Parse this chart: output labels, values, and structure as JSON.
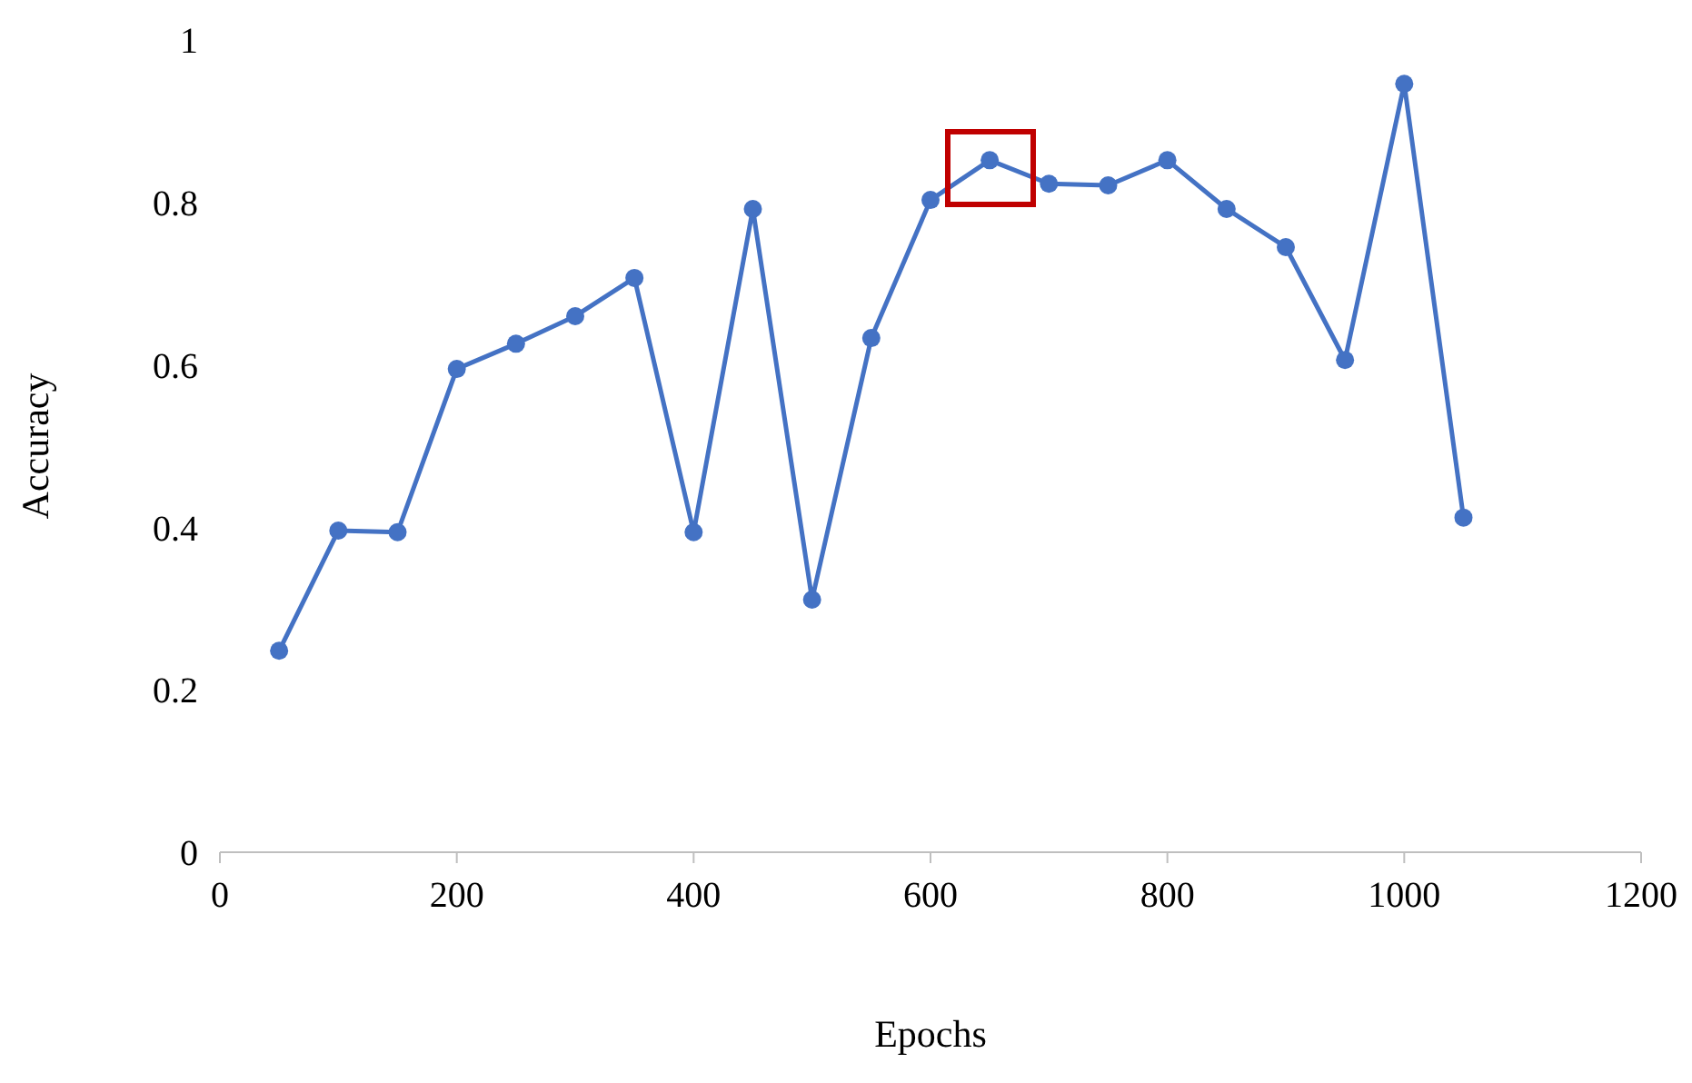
{
  "chart_data": {
    "type": "line",
    "xlabel": "Epochs",
    "ylabel": "Accuracy",
    "x": [
      50,
      100,
      150,
      200,
      250,
      300,
      350,
      400,
      450,
      500,
      550,
      600,
      650,
      700,
      750,
      800,
      850,
      900,
      950,
      1000,
      1050
    ],
    "series": [
      {
        "color": "#4472c4",
        "values": [
          0.248,
          0.396,
          0.394,
          0.595,
          0.626,
          0.66,
          0.707,
          0.394,
          0.792,
          0.311,
          0.633,
          0.803,
          0.852,
          0.823,
          0.821,
          0.852,
          0.792,
          0.745,
          0.606,
          0.946,
          0.412
        ]
      }
    ],
    "xlim": [
      0,
      1200
    ],
    "xticks": [
      0,
      200,
      400,
      600,
      800,
      1000,
      1200
    ],
    "ylim": [
      0,
      1
    ],
    "yticks": [
      0,
      0.2,
      0.4,
      0.6,
      0.8,
      1
    ],
    "grid": false,
    "legend": false,
    "marker": "circle",
    "line_style": "solid"
  }
}
